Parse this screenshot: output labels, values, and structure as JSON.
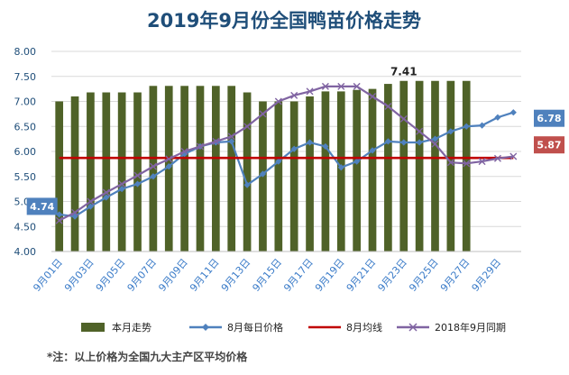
{
  "chart_data": {
    "type": "bar",
    "title": "2019年9月份全国鸭苗价格走势",
    "note": "*注：以上价格为全国九大主产区平均价格",
    "ylim": [
      4.0,
      8.0
    ],
    "y_ticks": [
      "4.00",
      "4.50",
      "5.00",
      "5.50",
      "6.00",
      "6.50",
      "7.00",
      "7.50",
      "8.00"
    ],
    "x_tick_labels": [
      "9月01日",
      "9月03日",
      "9月05日",
      "9月07日",
      "9月09日",
      "9月11日",
      "9月13日",
      "9月15日",
      "9月17日",
      "9月19日",
      "9月21日",
      "9月23日",
      "9月25日",
      "9月27日",
      "9月29日"
    ],
    "grid": true,
    "legend_position": "bottom",
    "series": [
      {
        "name": "本月走势",
        "type": "bar",
        "color": "#4f6228",
        "values": [
          7.0,
          7.1,
          7.18,
          7.18,
          7.18,
          7.18,
          7.31,
          7.31,
          7.31,
          7.31,
          7.31,
          7.31,
          7.18,
          7.0,
          7.0,
          7.0,
          7.1,
          7.2,
          7.2,
          7.23,
          7.25,
          7.35,
          7.41,
          7.41,
          7.41,
          7.41,
          7.41
        ]
      },
      {
        "name": "8月每日价格",
        "type": "line",
        "color": "#4f81bd",
        "marker": "diamond",
        "values": [
          4.74,
          4.7,
          4.9,
          5.08,
          5.25,
          5.35,
          5.5,
          5.7,
          5.95,
          6.1,
          6.18,
          6.2,
          5.33,
          5.55,
          5.8,
          6.05,
          6.18,
          6.1,
          5.68,
          5.8,
          6.02,
          6.2,
          6.18,
          6.18,
          6.25,
          6.4,
          6.5,
          6.52,
          6.68,
          6.78
        ]
      },
      {
        "name": "8月均线",
        "type": "line",
        "color": "#c00000",
        "values": [
          5.87,
          5.87,
          5.87,
          5.87,
          5.87,
          5.87,
          5.87,
          5.87,
          5.87,
          5.87,
          5.87,
          5.87,
          5.87,
          5.87,
          5.87,
          5.87,
          5.87,
          5.87,
          5.87,
          5.87,
          5.87,
          5.87,
          5.87,
          5.87,
          5.87,
          5.87,
          5.87,
          5.87,
          5.87,
          5.87
        ]
      },
      {
        "name": "2018年9月同期",
        "type": "line",
        "color": "#8064a2",
        "marker": "x",
        "values": [
          4.62,
          4.78,
          5.0,
          5.18,
          5.35,
          5.52,
          5.7,
          5.85,
          6.0,
          6.1,
          6.2,
          6.3,
          6.5,
          6.75,
          7.0,
          7.12,
          7.2,
          7.3,
          7.3,
          7.3,
          7.1,
          6.9,
          6.65,
          6.4,
          6.15,
          5.78,
          5.76,
          5.8,
          5.86,
          5.9
        ]
      }
    ],
    "annotations": [
      {
        "text": "7.41",
        "series": "本月走势",
        "index": 22
      },
      {
        "text": "4.74",
        "series": "8月每日价格",
        "index": 0,
        "color": "#4f81bd"
      },
      {
        "text": "6.78",
        "series": "8月每日价格",
        "index": 29,
        "color": "#4f81bd"
      },
      {
        "text": "5.87",
        "series": "8月均线",
        "index": 29,
        "color": "#c0504d"
      }
    ]
  }
}
